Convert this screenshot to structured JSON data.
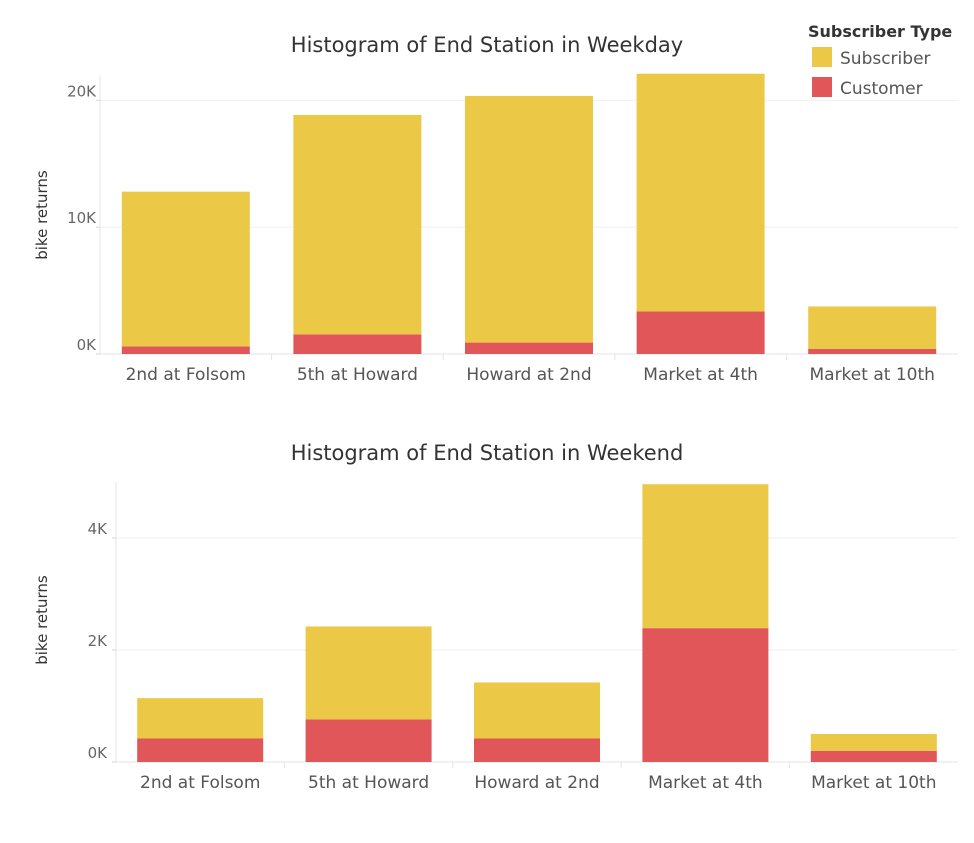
{
  "legend": {
    "title": "Subscriber Type",
    "placement": "top-right",
    "items": [
      {
        "label": "Subscriber",
        "color": "#EBC846"
      },
      {
        "label": "Customer",
        "color": "#E15759"
      }
    ]
  },
  "chart_data": [
    {
      "type": "bar",
      "stacked": true,
      "title": "Histogram of End Station in Weekday",
      "xlabel": "",
      "ylabel": "bike returns",
      "ylim": [
        0,
        22000
      ],
      "yticks": [
        0,
        10000,
        20000
      ],
      "ytick_labels": [
        "0K",
        "10K",
        "20K"
      ],
      "grid": true,
      "categories": [
        "2nd at Folsom",
        "5th at Howard",
        "Howard at 2nd",
        "Market at 4th",
        "Market at 10th"
      ],
      "series": [
        {
          "name": "Customer",
          "color": "#E15759",
          "values": [
            600,
            1550,
            900,
            3350,
            400
          ]
        },
        {
          "name": "Subscriber",
          "color": "#EBC846",
          "values": [
            12200,
            17300,
            19450,
            18750,
            3350
          ]
        }
      ]
    },
    {
      "type": "bar",
      "stacked": true,
      "title": "Histogram of End Station in Weekend",
      "xlabel": "",
      "ylabel": "bike returns",
      "ylim": [
        0,
        5000
      ],
      "yticks": [
        0,
        2000,
        4000
      ],
      "ytick_labels": [
        "0K",
        "2K",
        "4K"
      ],
      "grid": true,
      "categories": [
        "2nd at Folsom",
        "5th at Howard",
        "Howard at 2nd",
        "Market at 4th",
        "Market at 10th"
      ],
      "series": [
        {
          "name": "Customer",
          "color": "#E15759",
          "values": [
            420,
            760,
            420,
            2390,
            200
          ]
        },
        {
          "name": "Subscriber",
          "color": "#EBC846",
          "values": [
            720,
            1660,
            1000,
            2570,
            300
          ]
        }
      ]
    }
  ]
}
